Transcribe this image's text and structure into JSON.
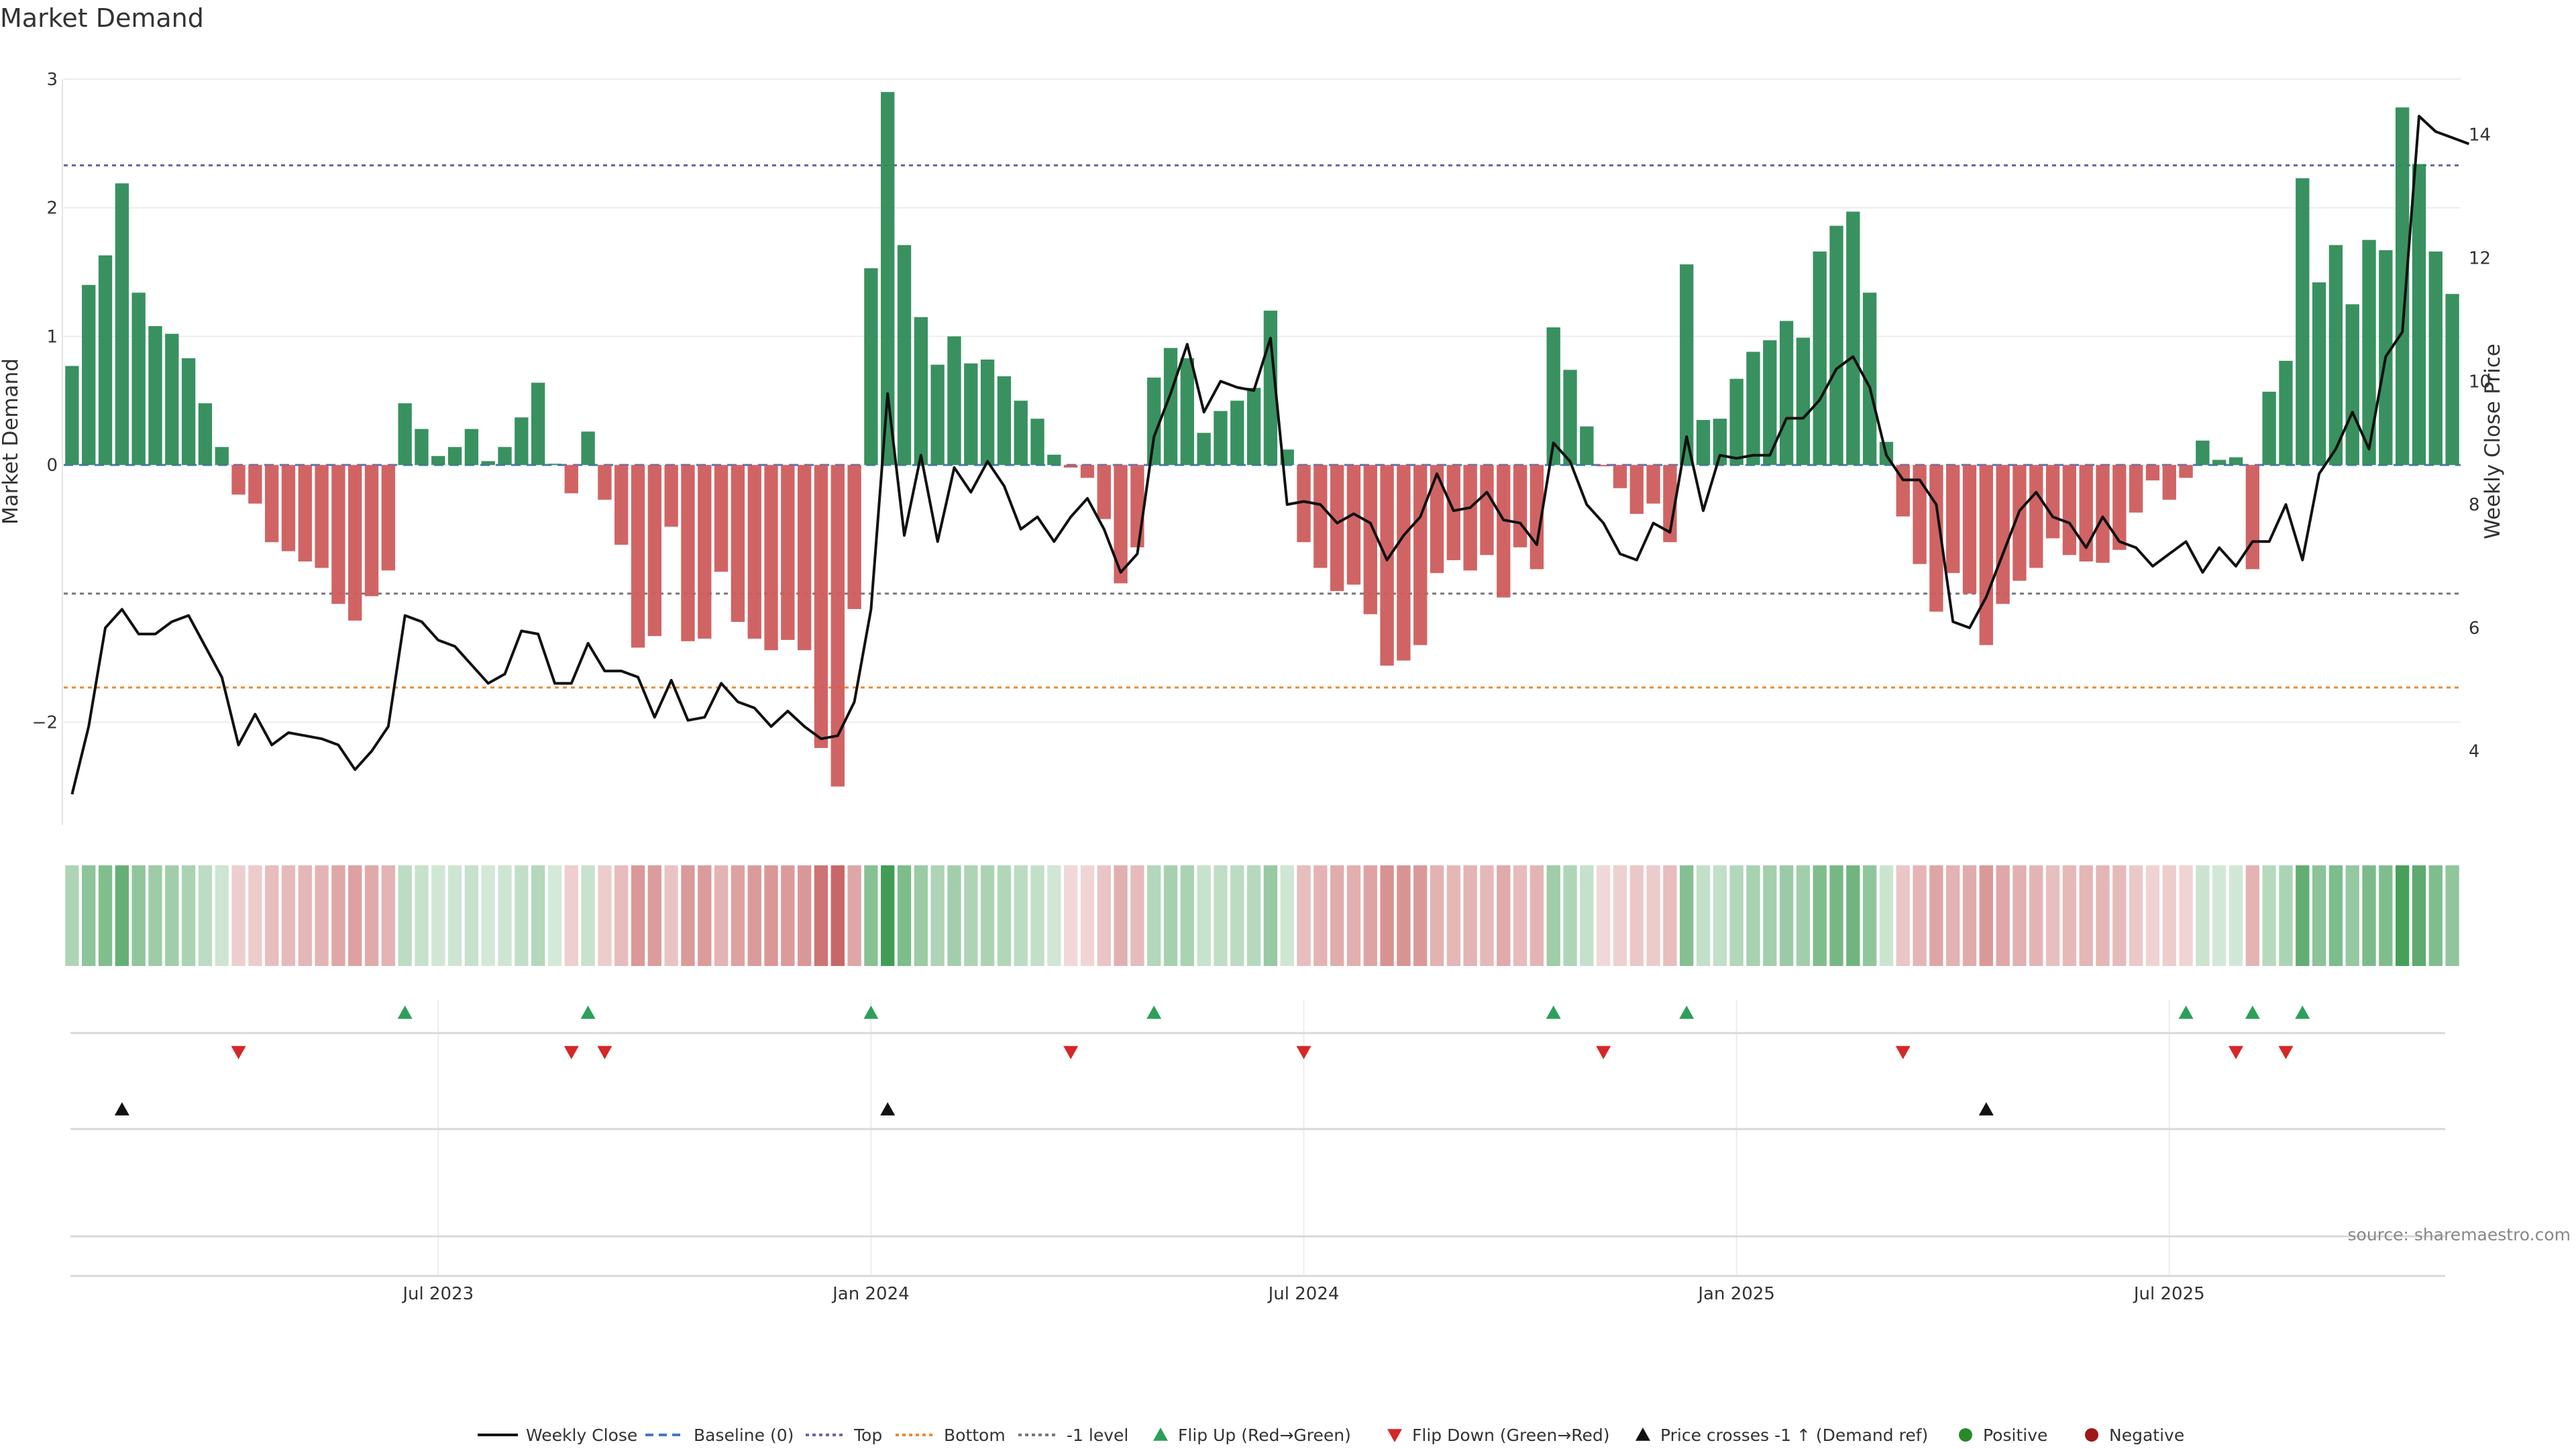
{
  "chart_data": {
    "type": "bar",
    "title": "Market Demand",
    "ylabel": "Market Demand",
    "y2label": "Weekly Close Price",
    "ylim": [
      -2.8,
      3.0
    ],
    "y2lim": [
      2.8,
      14.9
    ],
    "yticks": [
      "3",
      "2",
      "1",
      "0",
      "−2"
    ],
    "yticks_values": [
      3,
      2,
      1,
      0,
      -2
    ],
    "y2ticks": [
      "14",
      "12",
      "10",
      "8",
      "6",
      "4"
    ],
    "y2ticks_values": [
      14,
      12,
      10,
      8,
      6,
      4
    ],
    "date_ticks": [
      "Jul 2023",
      "Jan 2024",
      "Jul 2024",
      "Jan 2025",
      "Jul 2025"
    ],
    "date_tick_weeks": [
      22,
      48,
      74,
      100,
      126
    ],
    "levels": [
      {
        "name": "Top",
        "value": 2.33,
        "color": "#6666aa"
      },
      {
        "name": "-1 level",
        "value": -1.0,
        "color": "#777777"
      },
      {
        "name": "Bottom",
        "value": -1.73,
        "color": "#ee8833"
      }
    ],
    "demand": [
      0.77,
      1.4,
      1.63,
      2.19,
      1.34,
      1.08,
      1.02,
      0.83,
      0.48,
      0.14,
      -0.23,
      -0.3,
      -0.6,
      -0.67,
      -0.75,
      -0.8,
      -1.08,
      -1.21,
      -1.02,
      -0.82,
      0.48,
      0.28,
      0.07,
      0.14,
      0.28,
      0.03,
      0.14,
      0.37,
      0.64,
      0.01,
      -0.22,
      0.26,
      -0.27,
      -0.62,
      -1.42,
      -1.33,
      -0.48,
      -1.37,
      -1.35,
      -0.83,
      -1.22,
      -1.35,
      -1.44,
      -1.36,
      -1.44,
      -2.2,
      -2.5,
      -1.12,
      1.53,
      2.9,
      1.71,
      1.15,
      0.78,
      1.0,
      0.79,
      0.82,
      0.69,
      0.5,
      0.36,
      0.08,
      -0.02,
      -0.1,
      -0.42,
      -0.92,
      -0.64,
      0.68,
      0.91,
      0.83,
      0.25,
      0.42,
      0.5,
      0.6,
      1.2,
      0.12,
      -0.6,
      -0.8,
      -0.98,
      -0.93,
      -1.16,
      -1.56,
      -1.52,
      -1.4,
      -0.84,
      -0.74,
      -0.82,
      -0.7,
      -1.03,
      -0.64,
      -0.81,
      1.07,
      0.74,
      0.3,
      -0.01,
      -0.18,
      -0.38,
      -0.3,
      -0.6,
      1.56,
      0.35,
      0.36,
      0.67,
      0.88,
      0.97,
      1.12,
      0.99,
      1.66,
      1.86,
      1.97,
      1.34,
      0.18,
      -0.4,
      -0.77,
      -1.14,
      -0.84,
      -1.0,
      -1.4,
      -1.08,
      -0.9,
      -0.8,
      -0.57,
      -0.7,
      -0.75,
      -0.76,
      -0.66,
      -0.37,
      -0.12,
      -0.27,
      -0.1,
      0.19,
      0.04,
      0.06,
      -0.81,
      0.57,
      0.81,
      2.23,
      1.42,
      1.71,
      1.25,
      1.75,
      1.67,
      2.78,
      2.34,
      1.66,
      1.33
    ],
    "close": [
      3.3,
      4.4,
      6.0,
      6.3,
      5.9,
      5.9,
      6.1,
      6.2,
      5.7,
      5.2,
      4.1,
      4.6,
      4.1,
      4.3,
      4.25,
      4.2,
      4.1,
      3.7,
      4.0,
      4.4,
      6.2,
      6.1,
      5.8,
      5.7,
      5.4,
      5.1,
      5.25,
      5.95,
      5.9,
      5.1,
      5.1,
      5.75,
      5.3,
      5.3,
      5.2,
      4.55,
      5.15,
      4.5,
      4.55,
      5.1,
      4.8,
      4.7,
      4.4,
      4.65,
      4.4,
      4.2,
      4.25,
      4.8,
      6.3,
      9.8,
      7.5,
      8.8,
      7.4,
      8.6,
      8.2,
      8.7,
      8.3,
      7.6,
      7.8,
      7.4,
      7.8,
      8.1,
      7.6,
      6.9,
      7.2,
      9.1,
      9.8,
      10.6,
      9.5,
      10.0,
      9.9,
      9.85,
      10.7,
      8.0,
      8.05,
      8.0,
      7.7,
      7.85,
      7.7,
      7.1,
      7.5,
      7.8,
      8.5,
      7.9,
      7.95,
      8.2,
      7.75,
      7.7,
      7.35,
      9.0,
      8.7,
      8.0,
      7.7,
      7.2,
      7.1,
      7.7,
      7.55,
      9.1,
      7.9,
      8.8,
      8.75,
      8.8,
      8.8,
      9.4,
      9.4,
      9.7,
      10.2,
      10.4,
      9.9,
      8.8,
      8.4,
      8.4,
      8.0,
      6.1,
      6.0,
      6.5,
      7.2,
      7.9,
      8.2,
      7.8,
      7.7,
      7.3,
      7.8,
      7.4,
      7.3,
      7.0,
      7.2,
      7.4,
      6.9,
      7.3,
      7.0,
      7.4,
      7.4,
      8.0,
      7.1,
      8.5,
      8.9,
      9.5,
      8.9,
      10.4,
      10.8,
      14.3,
      14.05,
      13.95,
      13.85
    ],
    "flip_up_weeks": [
      20,
      31,
      48,
      65,
      89,
      97,
      127,
      131,
      134
    ],
    "flip_down_weeks": [
      10,
      30,
      32,
      60,
      74,
      92,
      110,
      130,
      133
    ],
    "price_cross_weeks": [
      3,
      49,
      115
    ],
    "legend": [
      "Weekly Close",
      "Baseline (0)",
      "Top",
      "Bottom",
      "-1 level",
      "Flip Up (Red→Green)",
      "Flip Down (Green→Red)",
      "Price crosses -1 ↑ (Demand ref)",
      "Positive",
      "Negative"
    ],
    "colors": {
      "positive": "#2e8b57",
      "negative": "#cd5c5c",
      "close": "#111111",
      "baseline": "#4a77c0",
      "flip_up": "#2ca05a",
      "flip_down": "#d62728",
      "price_cross": "#111111",
      "legend_positive": "#2a8a2a",
      "legend_negative": "#a01818"
    }
  },
  "source": "source: sharemaestro.com"
}
